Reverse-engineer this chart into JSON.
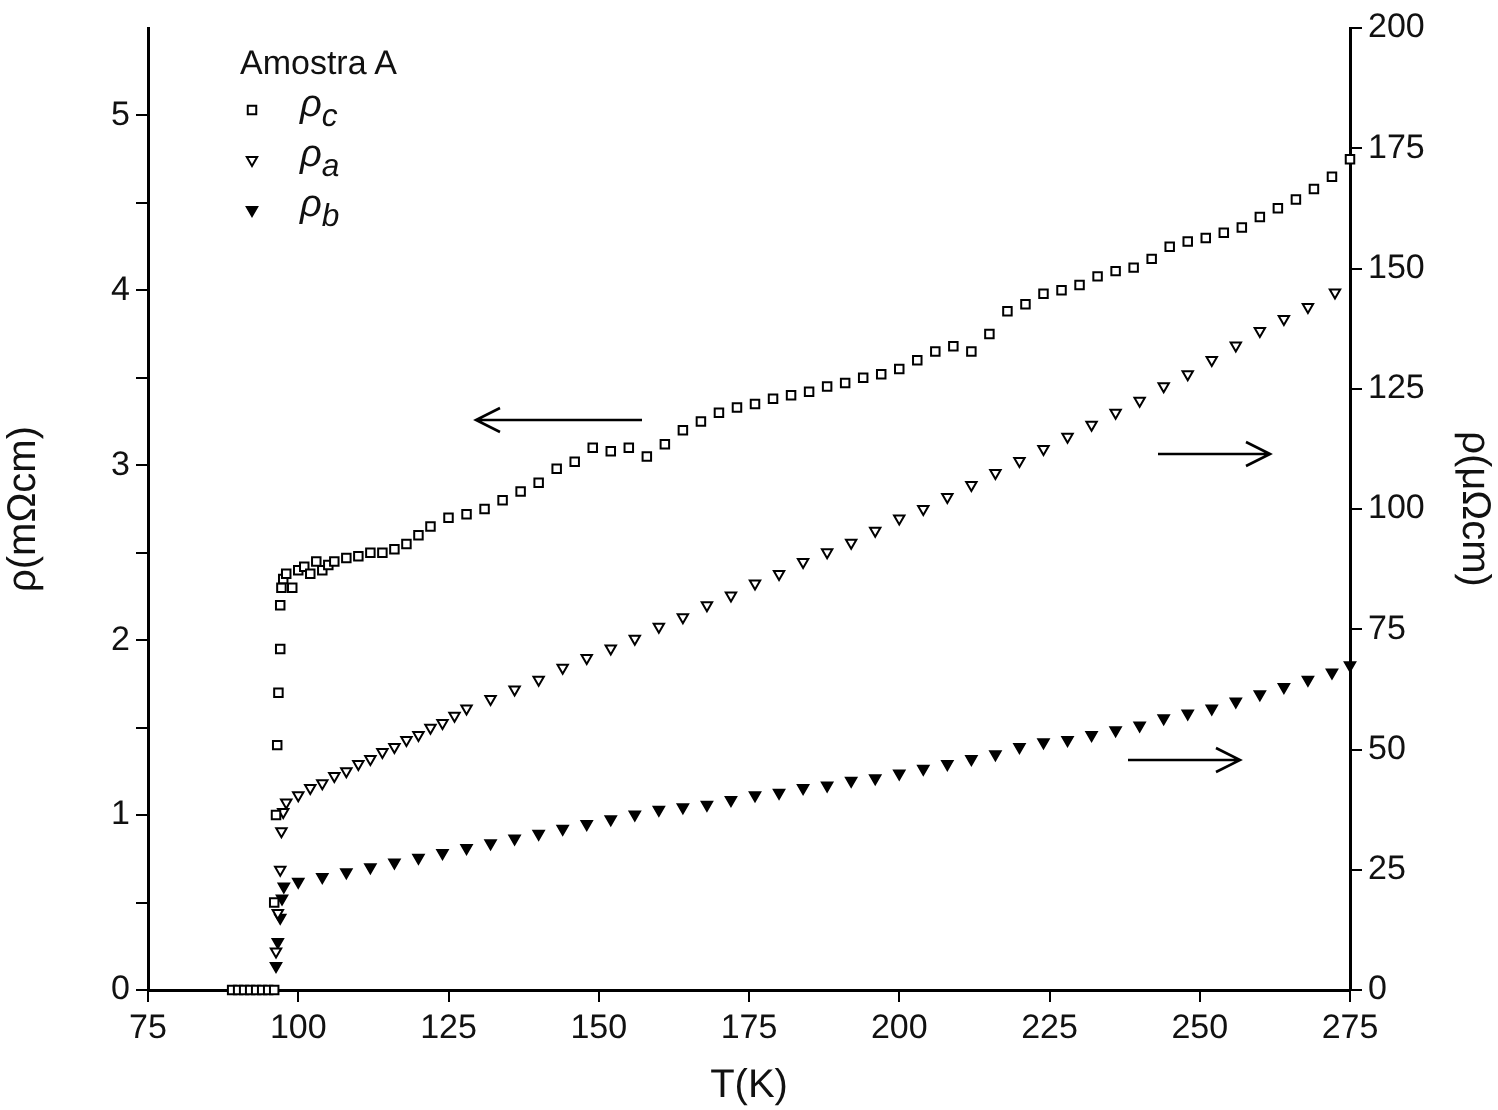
{
  "chart_data": {
    "type": "scatter",
    "xlabel": "T(K)",
    "ylabel": "ρ(mΩcm)",
    "y2label": "ρ(μΩcm)",
    "legend_title": "Amostra A",
    "legend": "top left",
    "xlim": [
      75,
      275
    ],
    "xticks": [
      75,
      100,
      125,
      150,
      175,
      200,
      225,
      250,
      275
    ],
    "ylim": [
      0,
      5.5
    ],
    "yticks": [
      0,
      {
        "value": 0.5,
        "label": null
      },
      1,
      {
        "value": 1.5,
        "label": null
      },
      2,
      {
        "value": 2.5,
        "label": null
      },
      3,
      {
        "value": 3.5,
        "label": null
      },
      4,
      {
        "value": 4.5,
        "label": null
      },
      5
    ],
    "y2lim": [
      0,
      200
    ],
    "y2ticks": [
      0,
      25,
      50,
      75,
      100,
      125,
      150,
      175,
      200
    ],
    "grid": false,
    "series": [
      {
        "name": "ρ$_{c}$",
        "color": "#000000",
        "marker": "square",
        "x": [
          89,
          90,
          91,
          92,
          93,
          94,
          95,
          96,
          96,
          96.3,
          96.5,
          96.7,
          97,
          97,
          97.2,
          97.5,
          98,
          99,
          100,
          101,
          102,
          103,
          104,
          105,
          106,
          108,
          110,
          112,
          114,
          116,
          118,
          120,
          122,
          125,
          128,
          131,
          134,
          137,
          140,
          143,
          146,
          149,
          152,
          155,
          158,
          161,
          164,
          167,
          170,
          173,
          176,
          179,
          182,
          185,
          188,
          191,
          194,
          197,
          200,
          203,
          206,
          209,
          212,
          215,
          218,
          221,
          224,
          227,
          230,
          233,
          236,
          239,
          242,
          245,
          248,
          251,
          254,
          257,
          260,
          263,
          266,
          269,
          272,
          275
        ],
        "values": [
          0,
          0,
          0,
          0,
          0,
          0,
          0,
          0,
          0.5,
          1.0,
          1.4,
          1.7,
          1.95,
          2.2,
          2.3,
          2.35,
          2.38,
          2.3,
          2.4,
          2.42,
          2.38,
          2.45,
          2.4,
          2.43,
          2.45,
          2.47,
          2.48,
          2.5,
          2.5,
          2.52,
          2.55,
          2.6,
          2.65,
          2.7,
          2.72,
          2.75,
          2.8,
          2.85,
          2.9,
          2.98,
          3.02,
          3.1,
          3.08,
          3.1,
          3.05,
          3.12,
          3.2,
          3.25,
          3.3,
          3.33,
          3.35,
          3.38,
          3.4,
          3.42,
          3.45,
          3.47,
          3.5,
          3.52,
          3.55,
          3.6,
          3.65,
          3.68,
          3.65,
          3.75,
          3.88,
          3.92,
          3.98,
          4.0,
          4.03,
          4.08,
          4.11,
          4.13,
          4.18,
          4.25,
          4.28,
          4.3,
          4.33,
          4.36,
          4.42,
          4.47,
          4.52,
          4.58,
          4.65,
          4.75
        ]
      },
      {
        "name": "ρ$_{a}$",
        "color": "#000000",
        "marker": "triangle",
        "axis": "y2",
        "x": [
          96.3,
          96.6,
          97,
          97.2,
          97.5,
          98,
          100,
          102,
          104,
          106,
          108,
          110,
          112,
          114,
          116,
          118,
          120,
          122,
          124,
          126,
          128,
          132,
          136,
          140,
          144,
          148,
          152,
          156,
          160,
          164,
          168,
          172,
          176,
          180,
          184,
          188,
          192,
          196,
          200,
          204,
          208,
          212,
          216,
          220,
          224,
          228,
          232,
          236,
          240,
          244,
          248,
          252,
          256,
          260,
          264,
          268,
          272.5
        ],
        "values": [
          8,
          16,
          25,
          33,
          37,
          39,
          40.5,
          42,
          43,
          44.5,
          45.5,
          47,
          48,
          49.5,
          50.5,
          52,
          53,
          54.5,
          55.5,
          57,
          58.5,
          60.5,
          62.5,
          64.5,
          67,
          69,
          71,
          73,
          75.5,
          77.5,
          80,
          82,
          84.5,
          86.5,
          89,
          91,
          93,
          95.5,
          98,
          100,
          102.5,
          105,
          107.5,
          110,
          112.5,
          115,
          117.5,
          120,
          122.5,
          125.5,
          128,
          131,
          134,
          137,
          139.5,
          142,
          145
        ]
      },
      {
        "name": "ρ$_{b}$",
        "color": "#000000",
        "marker": "triangle",
        "axis": "y2",
        "x": [
          96.3,
          96.6,
          97,
          97.3,
          97.6,
          100,
          104,
          108,
          112,
          116,
          120,
          124,
          128,
          132,
          136,
          140,
          144,
          148,
          152,
          156,
          160,
          164,
          168,
          172,
          176,
          180,
          184,
          188,
          192,
          196,
          200,
          204,
          208,
          212,
          216,
          220,
          224,
          228,
          232,
          236,
          240,
          244,
          248,
          252,
          256,
          260,
          264,
          268,
          272,
          275
        ],
        "values": [
          5,
          10,
          15,
          19,
          21.5,
          22.5,
          23.5,
          24.5,
          25.5,
          26.5,
          27.5,
          28.5,
          29.5,
          30.5,
          31.5,
          32.5,
          33.5,
          34.5,
          35.5,
          36.5,
          37.5,
          38,
          38.5,
          39.5,
          40.5,
          41,
          42,
          42.5,
          43.5,
          44,
          45,
          46,
          47,
          48,
          49,
          50.5,
          51.5,
          52,
          53,
          54,
          55,
          56.5,
          57.5,
          58.5,
          60,
          61.5,
          63,
          64.5,
          66,
          67.5
        ]
      }
    ]
  }
}
